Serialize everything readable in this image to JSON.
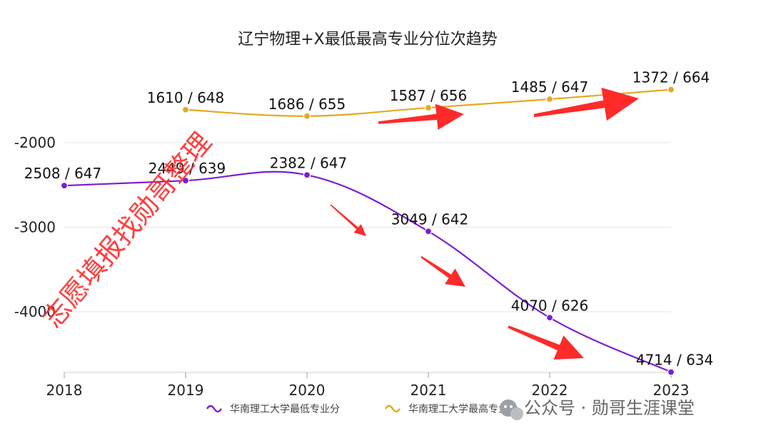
{
  "chart_data": {
    "type": "line",
    "title": "辽宁物理+X最低最高专业分位次趋势",
    "categories": [
      "2018",
      "2019",
      "2020",
      "2021",
      "2022",
      "2023"
    ],
    "y_ticks": [
      "-2000",
      "-3000",
      "-4000"
    ],
    "series": [
      {
        "name": "华南理工大学最低专业分",
        "color": "#7b1fd1",
        "x": [
          "2018",
          "2019",
          "2020",
          "2021",
          "2022",
          "2023"
        ],
        "ranks": [
          2508,
          2449,
          2382,
          3049,
          4070,
          4714
        ],
        "scores": [
          647,
          639,
          647,
          642,
          626,
          634
        ],
        "labels": [
          "2508 / 647",
          "2449 / 639",
          "2382 / 647",
          "3049 / 642",
          "4070 / 626",
          "4714 / 634"
        ]
      },
      {
        "name": "华南理工大学最高专业分",
        "color": "#e3a920",
        "x": [
          "2019",
          "2020",
          "2021",
          "2022",
          "2023"
        ],
        "ranks": [
          1610,
          1686,
          1587,
          1485,
          1372
        ],
        "scores": [
          648,
          655,
          656,
          647,
          664
        ],
        "labels": [
          "1610 / 648",
          "1686 / 655",
          "1587 / 656",
          "1485 / 647",
          "1372 / 664"
        ]
      }
    ],
    "legend_position": "bottom",
    "grid": true,
    "annotation_color": "#ff2a2a"
  },
  "watermark_text": "志愿填报找勋哥整理",
  "wechat_text": "公众号 · 勋哥生涯课堂"
}
